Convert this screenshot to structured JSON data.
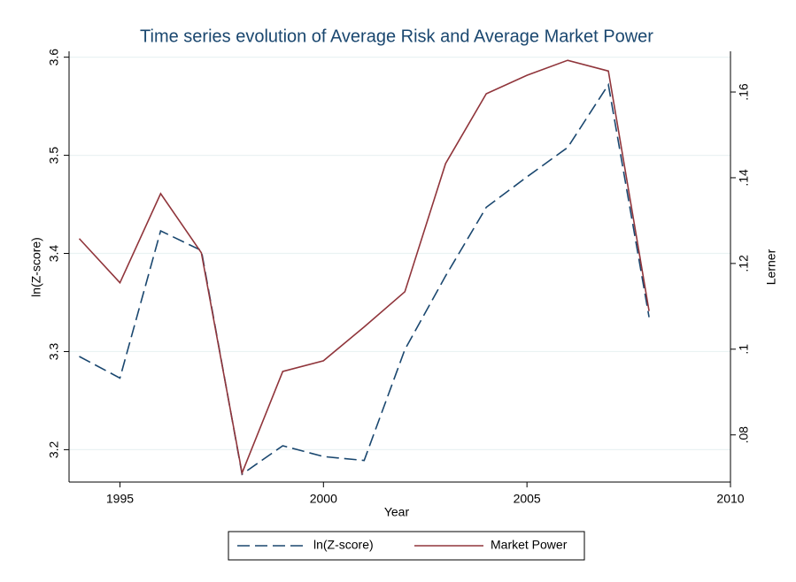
{
  "chart_data": {
    "type": "line",
    "title": "Time series evolution of Average Risk and Average Market Power",
    "x_label": "Year",
    "y_label": "ln(Z-score)",
    "y2_label": "Lerner",
    "x": [
      1994,
      1995,
      1996,
      1997,
      1998,
      1999,
      2000,
      2001,
      2002,
      2003,
      2004,
      2005,
      2006,
      2007,
      2008
    ],
    "series": [
      {
        "name": "ln(Z-score)",
        "color": "#1a476f",
        "dash": true,
        "values": [
          3.295,
          3.273,
          3.423,
          3.403,
          3.175,
          3.204,
          3.193,
          3.189,
          3.302,
          3.377,
          3.447,
          3.478,
          3.508,
          3.572,
          3.335
        ]
      },
      {
        "name": "Market Power",
        "color": "#90353b",
        "axis": "y2",
        "values": [
          0.1258,
          0.1155,
          0.1363,
          0.1225,
          0.0711,
          0.0948,
          0.0973,
          0.1052,
          0.1134,
          0.1433,
          0.1596,
          0.1639,
          0.1674,
          0.1649,
          0.1089
        ]
      }
    ],
    "xlim": [
      1993.75,
      2010
    ],
    "xticks": [
      1995,
      2000,
      2005,
      2010
    ],
    "ylim": [
      3.167,
      3.606
    ],
    "yticks": [
      3.2,
      3.3,
      3.4,
      3.5,
      3.6
    ],
    "y2lim": [
      0.069,
      0.1695
    ],
    "y2ticks": [
      {
        "value": 0.08,
        "label": ".08"
      },
      {
        "value": 0.1,
        "label": ".1"
      },
      {
        "value": 0.12,
        "label": ".12"
      },
      {
        "value": 0.14,
        "label": ".14"
      },
      {
        "value": 0.16,
        "label": ".16"
      }
    ],
    "grid": true,
    "legend": "bottom"
  }
}
